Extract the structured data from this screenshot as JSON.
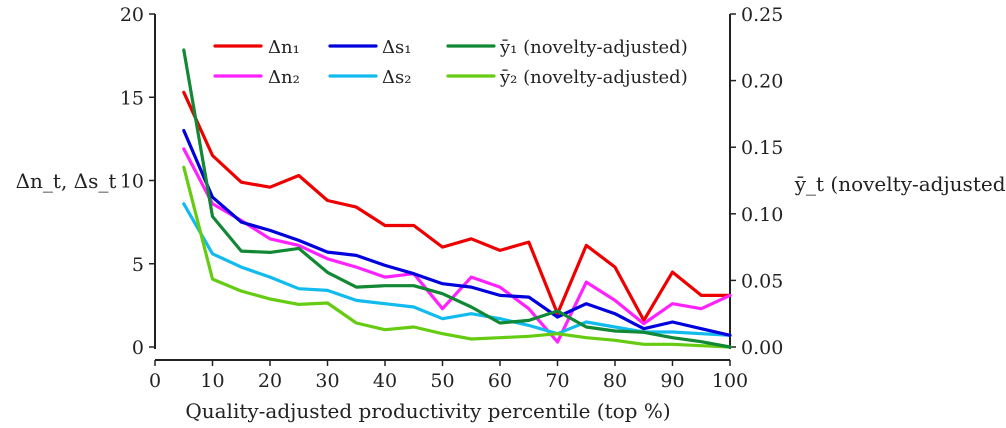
{
  "chart_data": {
    "type": "line",
    "xlabel": "Quality-adjusted productivity percentile (top %)",
    "ylabel_left": "Δn_t, Δs_t",
    "ylabel_right": "ȳ_t (novelty-adjusted)",
    "xlim": [
      0,
      100
    ],
    "ylim_left": [
      0,
      20
    ],
    "ylim_right": [
      0,
      0.25
    ],
    "x_ticks": [
      "0",
      "10",
      "20",
      "30",
      "40",
      "50",
      "60",
      "70",
      "80",
      "90",
      "100"
    ],
    "y_ticks_left": [
      "0",
      "5",
      "10",
      "15",
      "20"
    ],
    "y_ticks_right": [
      "0.00",
      "0.05",
      "0.10",
      "0.15",
      "0.20",
      "0.25"
    ],
    "grid": false,
    "legend_position": "top",
    "x": [
      5,
      10,
      15,
      20,
      25,
      30,
      35,
      40,
      45,
      50,
      55,
      60,
      65,
      70,
      75,
      80,
      85,
      90,
      95,
      100
    ],
    "series": [
      {
        "name": "Δn₁",
        "axis": "left",
        "color": "#ee0000",
        "values": [
          15.3,
          11.5,
          9.9,
          9.6,
          10.3,
          8.8,
          8.4,
          7.3,
          7.3,
          6.0,
          6.5,
          5.8,
          6.3,
          2.0,
          6.1,
          4.8,
          1.6,
          4.5,
          3.1,
          3.1
        ]
      },
      {
        "name": "Δn₂",
        "axis": "left",
        "color": "#ff22ff",
        "values": [
          11.9,
          8.6,
          7.6,
          6.5,
          6.1,
          5.3,
          4.8,
          4.2,
          4.4,
          2.3,
          4.2,
          3.6,
          2.3,
          0.3,
          3.9,
          2.8,
          1.4,
          2.6,
          2.3,
          3.1
        ]
      },
      {
        "name": "Δs₁",
        "axis": "left",
        "color": "#0000dd",
        "values": [
          13.0,
          9.0,
          7.5,
          7.0,
          6.4,
          5.7,
          5.5,
          4.9,
          4.4,
          3.8,
          3.6,
          3.1,
          3.0,
          1.8,
          2.6,
          2.0,
          1.1,
          1.5,
          1.1,
          0.7
        ]
      },
      {
        "name": "Δs₂",
        "axis": "left",
        "color": "#11bbee",
        "values": [
          8.6,
          5.6,
          4.8,
          4.2,
          3.5,
          3.4,
          2.8,
          2.6,
          2.4,
          1.7,
          2.0,
          1.7,
          1.3,
          0.8,
          1.5,
          1.2,
          0.9,
          0.9,
          0.8,
          0.7
        ]
      },
      {
        "name": "ȳ₁ (novelty-adjusted)",
        "axis": "right",
        "color": "#118833",
        "values": [
          0.223,
          0.098,
          0.072,
          0.071,
          0.074,
          0.056,
          0.045,
          0.046,
          0.046,
          0.04,
          0.03,
          0.018,
          0.02,
          0.027,
          0.015,
          0.012,
          0.011,
          0.007,
          0.004,
          0.0
        ]
      },
      {
        "name": "ȳ₂ (novelty-adjusted)",
        "axis": "right",
        "color": "#66cc11",
        "values": [
          0.135,
          0.051,
          0.042,
          0.036,
          0.032,
          0.033,
          0.018,
          0.013,
          0.015,
          0.01,
          0.006,
          0.007,
          0.008,
          0.01,
          0.007,
          0.005,
          0.002,
          0.002,
          0.001,
          0.0
        ]
      }
    ]
  }
}
